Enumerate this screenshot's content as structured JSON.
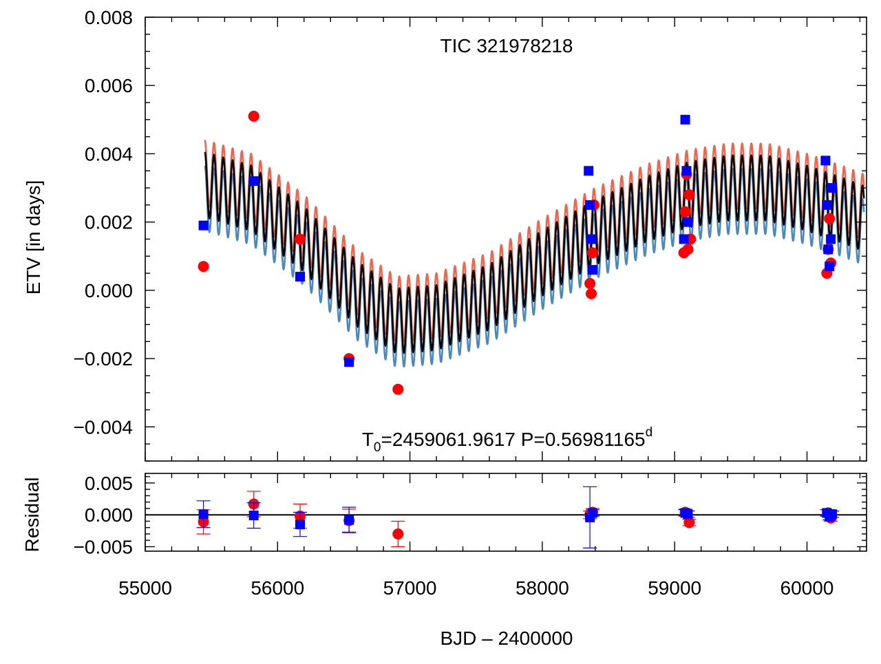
{
  "chart_data": [
    {
      "type": "scatter",
      "panel": "main",
      "title": "TIC 321978218",
      "annotation": {
        "t0_text": "T",
        "t0_sub": "0",
        "text": "=2459061.9617 P=0.56981165",
        "sup": "d"
      },
      "xlabel": "BJD – 2400000",
      "ylabel": "ETV [in days]",
      "xlim": [
        55000,
        60450
      ],
      "ylim": [
        -0.005,
        0.008
      ],
      "xticks": [
        55000,
        56000,
        57000,
        58000,
        59000,
        60000
      ],
      "xtick_labels": [
        "55000",
        "56000",
        "57000",
        "58000",
        "59000",
        "60000"
      ],
      "yticks": [
        -0.004,
        -0.002,
        0.0,
        0.002,
        0.004,
        0.006,
        0.008
      ],
      "ytick_labels": [
        "−0.004",
        "−0.002",
        "0.000",
        "0.002",
        "0.004",
        "0.006",
        "0.008"
      ],
      "model": {
        "start": 55450,
        "end": 60430,
        "period_days": 70,
        "trend_x": [
          55450,
          55800,
          56200,
          56600,
          56900,
          57200,
          57600,
          58000,
          58400,
          58800,
          59100,
          59400,
          59700,
          60000,
          60300,
          60430
        ],
        "trend_y": [
          0.0031,
          0.0027,
          0.0015,
          -0.0001,
          -0.0009,
          -0.0008,
          -0.0002,
          0.0008,
          0.0017,
          0.0024,
          0.0028,
          0.003,
          0.003,
          0.0027,
          0.0023,
          0.0021
        ],
        "amplitude": 0.00095,
        "offsets": {
          "primary": 0.00035,
          "secondary": -0.0004
        },
        "colors": {
          "model": "#000000",
          "primary": "#f4624b",
          "secondary": "#4a88c0"
        }
      },
      "series": [
        {
          "name": "primary",
          "marker": "circle",
          "color": "#ff0000",
          "x": [
            55440,
            55820,
            56170,
            56540,
            56910,
            58360,
            58370,
            58380,
            58390,
            59070,
            59080,
            59090,
            59100,
            59110,
            59120,
            60150,
            60160,
            60170,
            60180
          ],
          "y": [
            0.0007,
            0.0051,
            0.0015,
            -0.002,
            -0.0029,
            0.0002,
            -0.0001,
            0.0011,
            0.0025,
            0.0011,
            0.0023,
            0.0034,
            0.0012,
            0.0028,
            0.0015,
            0.0005,
            0.0012,
            0.0021,
            0.0008
          ]
        },
        {
          "name": "secondary",
          "marker": "square",
          "color": "#0000ff",
          "x": [
            55440,
            55820,
            56170,
            56540,
            58350,
            58360,
            58370,
            58380,
            59070,
            59080,
            59090,
            59100,
            60140,
            60150,
            60160,
            60170,
            60180,
            60190
          ],
          "y": [
            0.0019,
            0.0032,
            0.0004,
            -0.0021,
            0.0035,
            0.0025,
            0.0015,
            0.0006,
            0.0015,
            0.005,
            0.0035,
            0.002,
            0.0038,
            0.0025,
            0.0012,
            0.0007,
            0.0015,
            0.003
          ]
        }
      ]
    },
    {
      "type": "scatter",
      "panel": "residual",
      "ylabel": "Residual",
      "xlim": [
        55000,
        60450
      ],
      "ylim": [
        -0.0057,
        0.0065
      ],
      "yticks": [
        -0.005,
        0.0,
        0.005
      ],
      "ytick_labels": [
        "−0.005",
        "0.000",
        "0.005"
      ],
      "zero_line": 0,
      "series": [
        {
          "name": "primary",
          "marker": "circle",
          "color": "#ff0000",
          "x": [
            55440,
            55820,
            56170,
            56540,
            56910,
            58360,
            58380,
            59080,
            59110,
            60160,
            60180
          ],
          "y": [
            -0.0011,
            0.0017,
            -0.0002,
            -0.0009,
            -0.003,
            0.0,
            0.0004,
            0.0004,
            -0.0012,
            0.0003,
            -0.0005
          ],
          "err": [
            0.0019,
            0.002,
            0.0019,
            0.0018,
            0.002,
            0.0006,
            0.0006,
            0.0005,
            0.0005,
            0.0005,
            0.0005
          ]
        },
        {
          "name": "secondary",
          "marker": "square",
          "color": "#0000ff",
          "x": [
            55440,
            55820,
            56170,
            56540,
            58360,
            58380,
            59080,
            59100,
            60150,
            60170,
            60190
          ],
          "y": [
            0.0001,
            -0.0001,
            -0.0015,
            -0.0008,
            -0.0004,
            0.0003,
            0.0003,
            0.0001,
            0.0003,
            -0.0003,
            0.0001
          ],
          "err": [
            0.0021,
            0.002,
            0.0019,
            0.002,
            0.0048,
            0.0005,
            0.0005,
            0.0005,
            0.0005,
            0.0005,
            0.0005
          ]
        }
      ]
    }
  ]
}
